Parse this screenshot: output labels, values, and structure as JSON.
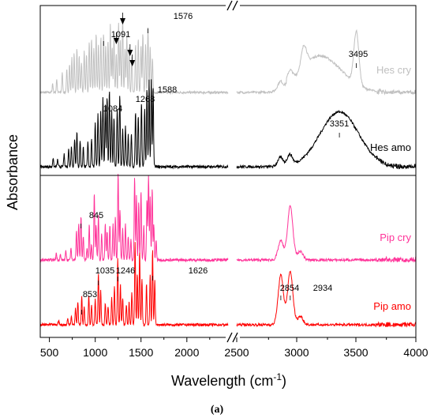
{
  "chart_data": {
    "type": "line",
    "xlabel": "Wavelength (cm",
    "xlabel_sup": "-1",
    "xlabel_close": ")",
    "ylabel": "Absorbance",
    "panel_label": "(a)",
    "axis_break": "//",
    "x_ticks": [
      "500",
      "1000",
      "1500",
      "2000",
      "2500",
      "3000",
      "3500",
      "4000"
    ],
    "x_ranges": [
      [
        400,
        2450
      ],
      [
        2480,
        4000
      ]
    ],
    "series": [
      {
        "name": "Hes cry",
        "color": "#c0c0c0",
        "peaks": [
          {
            "x": 1091,
            "label": "1091"
          },
          {
            "x": 1576,
            "label": "1576"
          },
          {
            "x": 3495,
            "label": "3495"
          }
        ]
      },
      {
        "name": "Hes amo",
        "color": "#000000",
        "peaks": [
          {
            "x": 1084,
            "label": "1084"
          },
          {
            "x": 1268,
            "label": "1268"
          },
          {
            "x": 1588,
            "label": "1588"
          },
          {
            "x": 3351,
            "label": "3351"
          }
        ]
      },
      {
        "name": "Pip cry",
        "color": "#ff3399",
        "peaks": [
          {
            "x": 845,
            "label": "845"
          }
        ]
      },
      {
        "name": "Pip amo",
        "color": "#ff0000",
        "peaks": [
          {
            "x": 853,
            "label": "853"
          },
          {
            "x": 1035,
            "label": "1035"
          },
          {
            "x": 1246,
            "label": "1246"
          },
          {
            "x": 1626,
            "label": "1626"
          },
          {
            "x": 2854,
            "label": "2854"
          },
          {
            "x": 2934,
            "label": "2934"
          }
        ]
      }
    ],
    "arrows": [
      1230,
      1300,
      1380,
      1405
    ],
    "grid": false
  }
}
